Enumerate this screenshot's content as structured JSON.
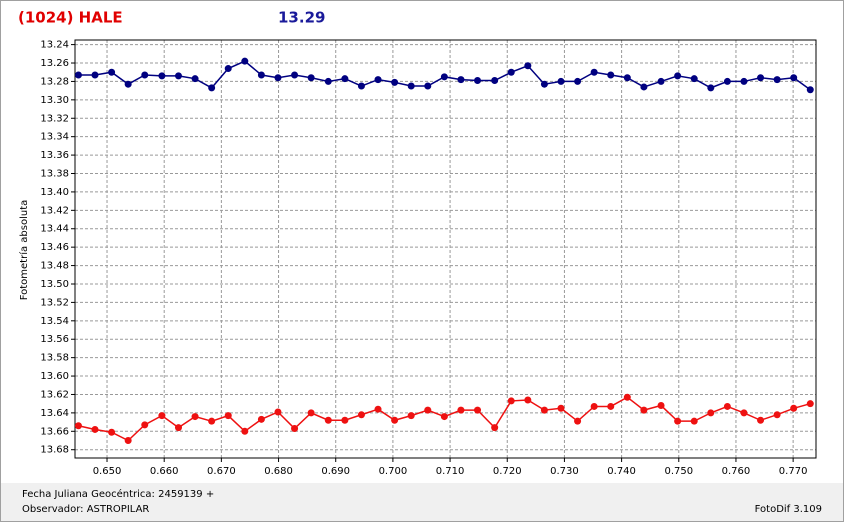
{
  "chart_data": {
    "type": "line",
    "title": "(1024) HALE",
    "subtitle": "13.29",
    "ylabel": "Fotometría absoluta",
    "xlabel": "Fecha Juliana Geocéntrica: 2459139 +",
    "observer": "Observador: ASTROPILAR",
    "software": "FotoDif 3.109",
    "x": [
      0.645,
      0.6479,
      0.6508,
      0.6537,
      0.6566,
      0.6596,
      0.6625,
      0.6654,
      0.6683,
      0.6712,
      0.6741,
      0.677,
      0.6799,
      0.6828,
      0.6857,
      0.6887,
      0.6916,
      0.6945,
      0.6974,
      0.7003,
      0.7032,
      0.7061,
      0.709,
      0.7119,
      0.7148,
      0.7178,
      0.7207,
      0.7236,
      0.7265,
      0.7294,
      0.7323,
      0.7352,
      0.7381,
      0.741,
      0.7439,
      0.7469,
      0.7498,
      0.7527,
      0.7556,
      0.7585,
      0.7614,
      0.7643,
      0.7672,
      0.7701,
      0.773
    ],
    "series": [
      {
        "color": "#000080",
        "values": [
          13.273,
          13.273,
          13.27,
          13.283,
          13.273,
          13.274,
          13.274,
          13.277,
          13.287,
          13.266,
          13.258,
          13.273,
          13.276,
          13.273,
          13.276,
          13.28,
          13.277,
          13.285,
          13.278,
          13.281,
          13.285,
          13.285,
          13.275,
          13.278,
          13.279,
          13.279,
          13.27,
          13.263,
          13.283,
          13.28,
          13.28,
          13.27,
          13.273,
          13.276,
          13.286,
          13.28,
          13.274,
          13.277,
          13.287,
          13.28,
          13.28,
          13.276,
          13.278,
          13.276,
          13.289
        ]
      },
      {
        "color": "#ee1111",
        "values": [
          13.654,
          13.658,
          13.661,
          13.67,
          13.653,
          13.643,
          13.656,
          13.644,
          13.649,
          13.643,
          13.66,
          13.647,
          13.639,
          13.657,
          13.64,
          13.648,
          13.648,
          13.642,
          13.636,
          13.648,
          13.643,
          13.637,
          13.644,
          13.637,
          13.637,
          13.656,
          13.627,
          13.626,
          13.637,
          13.635,
          13.649,
          13.633,
          13.633,
          13.623,
          13.637,
          13.632,
          13.649,
          13.649,
          13.64,
          13.633,
          13.64,
          13.648,
          13.642,
          13.635,
          13.63
        ]
      }
    ],
    "xlim": [
      0.6444,
      0.774
    ],
    "xticks": [
      {
        "value": 0.65,
        "label": "0.650"
      },
      {
        "value": 0.66,
        "label": "0.660"
      },
      {
        "value": 0.67,
        "label": "0.670"
      },
      {
        "value": 0.68,
        "label": "0.680"
      },
      {
        "value": 0.69,
        "label": "0.690"
      },
      {
        "value": 0.7,
        "label": "0.700"
      },
      {
        "value": 0.71,
        "label": "0.710"
      },
      {
        "value": 0.72,
        "label": "0.720"
      },
      {
        "value": 0.73,
        "label": "0.730"
      },
      {
        "value": 0.74,
        "label": "0.740"
      },
      {
        "value": 0.75,
        "label": "0.750"
      },
      {
        "value": 0.76,
        "label": "0.760"
      },
      {
        "value": 0.77,
        "label": "0.770"
      }
    ],
    "ylim": [
      13.689,
      13.235
    ],
    "yticks": [
      13.24,
      13.26,
      13.28,
      {
        "value": 13.3,
        "label": "13.30"
      },
      13.32,
      13.34,
      13.36,
      13.38,
      {
        "value": 13.4,
        "label": "13.40"
      },
      13.42,
      13.44,
      13.46,
      13.48,
      {
        "value": 13.5,
        "label": "13.50"
      },
      13.52,
      13.54,
      13.56,
      13.58,
      {
        "value": 13.6,
        "label": "13.60"
      },
      13.62,
      13.64,
      13.66,
      13.68
    ],
    "grid": true
  }
}
